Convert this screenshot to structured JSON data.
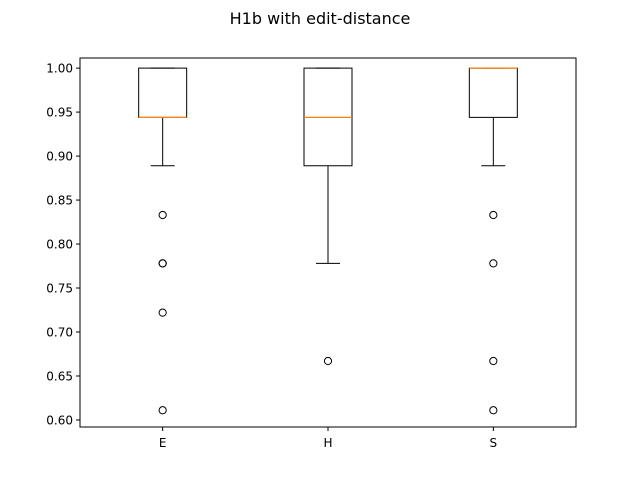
{
  "chart_data": {
    "type": "box",
    "title": "H1b with edit-distance",
    "xlabel": "",
    "ylabel": "",
    "ylim": [
      0.592,
      1.0115
    ],
    "yticks": [
      "0.60",
      "0.65",
      "0.70",
      "0.75",
      "0.80",
      "0.85",
      "0.90",
      "0.95",
      "1.00"
    ],
    "grid": false,
    "categories": [
      "E",
      "H",
      "S"
    ],
    "boxes": [
      {
        "name": "E",
        "whisker_low": 0.889,
        "q1": 0.944,
        "median": 0.944,
        "q3": 1.0,
        "whisker_high": 1.0,
        "outliers": [
          0.833,
          0.778,
          0.778,
          0.722,
          0.611
        ]
      },
      {
        "name": "H",
        "whisker_low": 0.778,
        "q1": 0.889,
        "median": 0.944,
        "q3": 1.0,
        "whisker_high": 1.0,
        "outliers": [
          0.667
        ]
      },
      {
        "name": "S",
        "whisker_low": 0.889,
        "q1": 0.944,
        "median": 1.0,
        "q3": 1.0,
        "whisker_high": 1.0,
        "outliers": [
          0.833,
          0.778,
          0.667,
          0.611
        ]
      }
    ],
    "colors": {
      "box": "#000000",
      "median": "#ff7f0e",
      "outlier": "#000000"
    }
  }
}
